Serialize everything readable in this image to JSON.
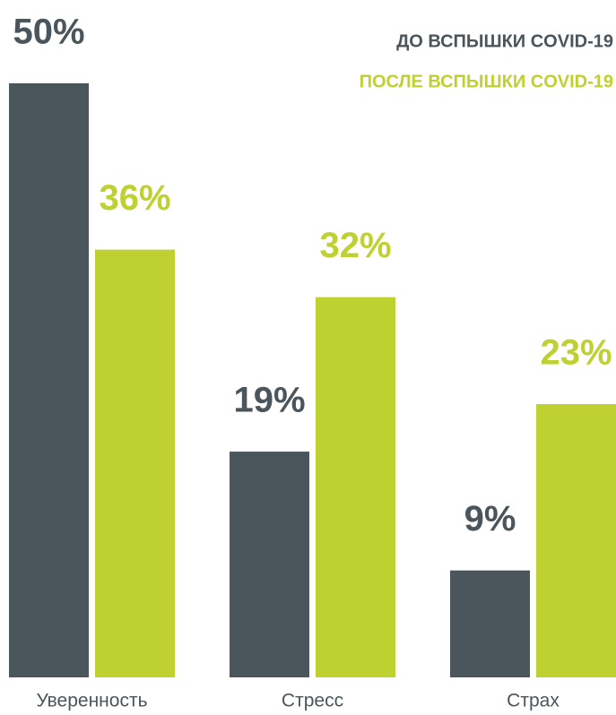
{
  "chart_data": {
    "type": "bar",
    "categories": [
      "Уверенность",
      "Стресс",
      "Страх"
    ],
    "series": [
      {
        "name": "ДО ВСПЫШКИ COVID-19",
        "color": "#4a555c",
        "values": [
          50,
          19,
          9
        ],
        "value_labels": [
          "50%",
          "19%",
          "9%"
        ]
      },
      {
        "name": "ПОСЛЕ ВСПЫШКИ COVID-19",
        "color": "#bfd130",
        "values": [
          36,
          32,
          23
        ],
        "value_labels": [
          "36%",
          "32%",
          "23%"
        ]
      }
    ],
    "legend": "top-right"
  }
}
